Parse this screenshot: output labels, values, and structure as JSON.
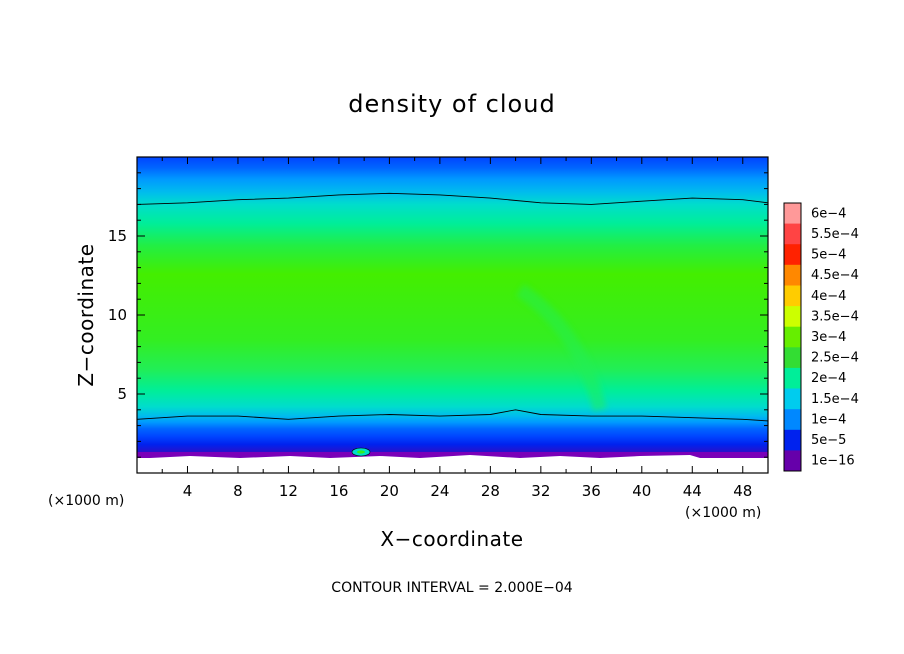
{
  "chart_data": {
    "type": "heatmap",
    "title": "density of cloud",
    "xlabel": "X−coordinate",
    "ylabel": "Z−coordinate",
    "x_unit": "(×1000 m)",
    "y_unit": "(×1000 m)",
    "xlim": [
      0,
      50
    ],
    "ylim": [
      0,
      20
    ],
    "x_ticks": [
      4,
      8,
      12,
      16,
      20,
      24,
      28,
      32,
      36,
      40,
      44,
      48
    ],
    "y_ticks": [
      5,
      10,
      15
    ],
    "note": "CONTOUR INTERVAL = 2.000E−04",
    "colorbar": {
      "labels": [
        "6e−4",
        "5.5e−4",
        "5e−4",
        "4.5e−4",
        "4e−4",
        "3.5e−4",
        "3e−4",
        "2.5e−4",
        "2e−4",
        "1.5e−4",
        "1e−4",
        "5e−5",
        "1e−16"
      ],
      "colors": [
        "#ff9999",
        "#ff4444",
        "#ff2200",
        "#ff8800",
        "#ffcc00",
        "#ccff00",
        "#66ee00",
        "#33dd33",
        "#00ee99",
        "#00ccee",
        "#0088ff",
        "#0022ee",
        "#6600aa"
      ]
    },
    "bands": [
      {
        "z": 0.9,
        "color": "#7a00b8"
      },
      {
        "z": 1.3,
        "color": "#2a10c8"
      },
      {
        "z": 1.8,
        "color": "#0022ee"
      },
      {
        "z": 2.3,
        "color": "#0044ff"
      },
      {
        "z": 2.8,
        "color": "#0066ff"
      },
      {
        "z": 3.2,
        "color": "#0099ff"
      },
      {
        "z": 3.6,
        "color": "#00bbee"
      },
      {
        "z": 4.2,
        "color": "#00ddcc"
      },
      {
        "z": 5.2,
        "color": "#00ee99"
      },
      {
        "z": 6.6,
        "color": "#22ee55"
      },
      {
        "z": 8.4,
        "color": "#33ee22"
      },
      {
        "z": 12.6,
        "color": "#44ee00"
      },
      {
        "z": 14.4,
        "color": "#22ee44"
      },
      {
        "z": 15.8,
        "color": "#00ee99"
      },
      {
        "z": 17.0,
        "color": "#00ddcc"
      },
      {
        "z": 17.8,
        "color": "#00bbee"
      },
      {
        "z": 18.6,
        "color": "#0099ff"
      },
      {
        "z": 19.3,
        "color": "#0066ff"
      },
      {
        "z": 20.0,
        "color": "#0044ff"
      }
    ],
    "contour_lines": [
      {
        "x": [
          0,
          4,
          8,
          12,
          16,
          20,
          24,
          28,
          30,
          32,
          36,
          40,
          44,
          48,
          50
        ],
        "z": [
          3.4,
          3.6,
          3.6,
          3.4,
          3.6,
          3.7,
          3.6,
          3.7,
          4.0,
          3.7,
          3.6,
          3.6,
          3.5,
          3.4,
          3.3
        ]
      },
      {
        "x": [
          0,
          4,
          8,
          12,
          16,
          20,
          24,
          28,
          32,
          36,
          40,
          44,
          48,
          50
        ],
        "z": [
          17.0,
          17.1,
          17.3,
          17.4,
          17.6,
          17.7,
          17.6,
          17.4,
          17.1,
          17.0,
          17.2,
          17.4,
          17.3,
          17.1
        ]
      }
    ]
  }
}
